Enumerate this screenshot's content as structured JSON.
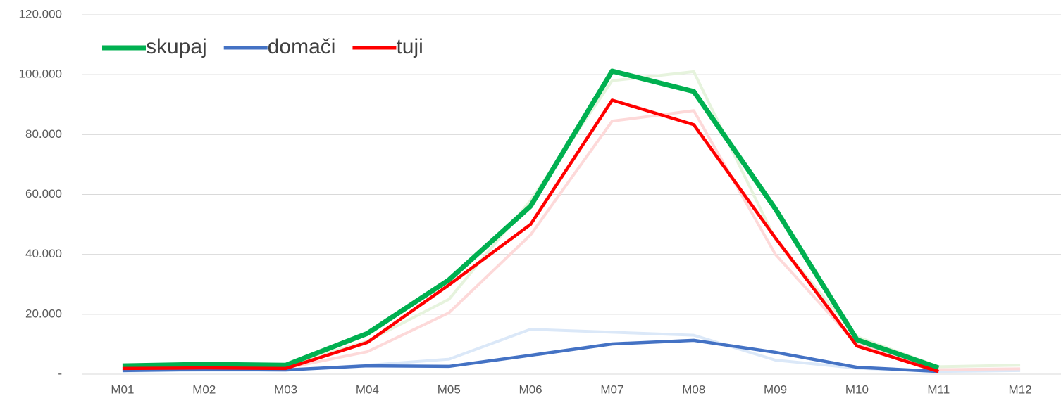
{
  "chart_data": {
    "type": "line",
    "categories": [
      "M01",
      "M02",
      "M03",
      "M04",
      "M05",
      "M06",
      "M07",
      "M08",
      "M09",
      "M10",
      "M11",
      "M12"
    ],
    "series": [
      {
        "color": "#e6f3dd",
        "values": [
          2500,
          3000,
          3000,
          11000,
          25000,
          58000,
          98000,
          101000,
          45000,
          12500,
          2500,
          3000
        ]
      },
      {
        "color": "#dbe8f8",
        "values": [
          1000,
          1300,
          1300,
          3000,
          5000,
          15000,
          14000,
          13000,
          4700,
          2000,
          900,
          1200
        ]
      },
      {
        "color": "#fdd9d9",
        "values": [
          1800,
          2000,
          2000,
          7500,
          20500,
          46500,
          84500,
          88000,
          40000,
          10000,
          1500,
          1800
        ]
      },
      {
        "name": "skupaj",
        "color": "#00b050",
        "values": [
          2800,
          3300,
          3000,
          13600,
          31500,
          56100,
          101200,
          94400,
          55200,
          11500,
          2100,
          null
        ]
      },
      {
        "name": "domači",
        "color": "#4472c4",
        "values": [
          1200,
          1600,
          1400,
          2800,
          2600,
          6300,
          10100,
          11300,
          7300,
          2300,
          900,
          null
        ]
      },
      {
        "name": "tuji",
        "color": "#ff0000",
        "values": [
          1900,
          2100,
          1900,
          10600,
          29800,
          50000,
          91500,
          83300,
          45500,
          9400,
          900,
          null
        ]
      }
    ],
    "ylim": [
      0,
      120000
    ],
    "yticks": [
      {
        "value": 0,
        "label": "-"
      },
      {
        "value": 20000,
        "label": "20.000"
      },
      {
        "value": 40000,
        "label": "40.000"
      },
      {
        "value": 60000,
        "label": "60.000"
      },
      {
        "value": 80000,
        "label": "80.000"
      },
      {
        "value": 100000,
        "label": "100.000"
      },
      {
        "value": 120000,
        "label": "120.000"
      }
    ],
    "grid": true,
    "legend": "top-left"
  }
}
